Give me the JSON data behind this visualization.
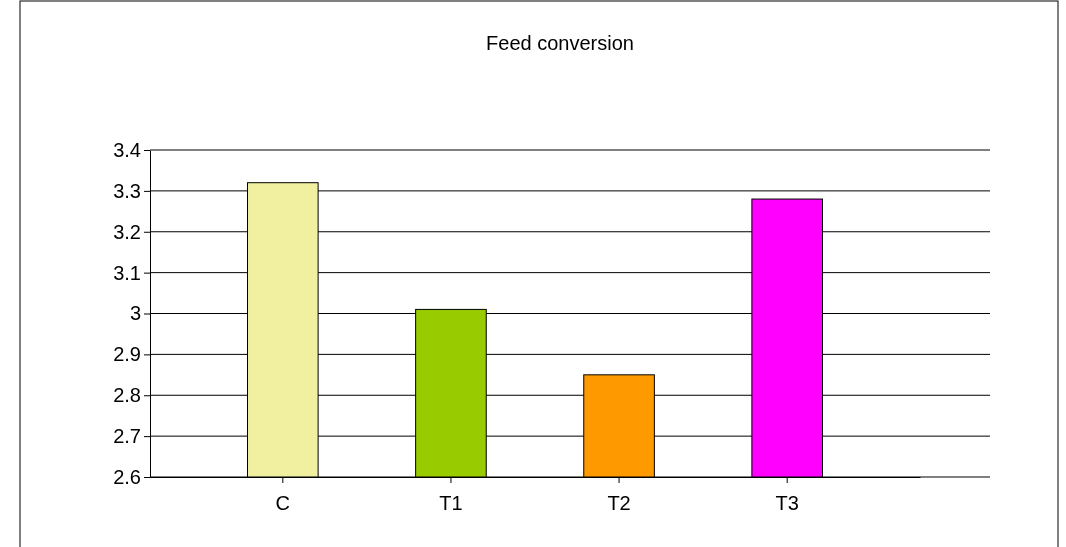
{
  "chart_data": {
    "type": "bar",
    "title": "Feed conversion",
    "categories": [
      "C",
      "T1",
      "T2",
      "T3"
    ],
    "values": [
      3.32,
      3.01,
      2.85,
      3.28
    ],
    "colors": [
      "#f0f0a0",
      "#99cc00",
      "#ff9900",
      "#ff00ff"
    ],
    "ylim": [
      2.6,
      3.4
    ],
    "yticks": [
      2.6,
      2.7,
      2.8,
      2.9,
      3,
      3.1,
      3.2,
      3.3,
      3.4
    ],
    "grid": "y"
  }
}
